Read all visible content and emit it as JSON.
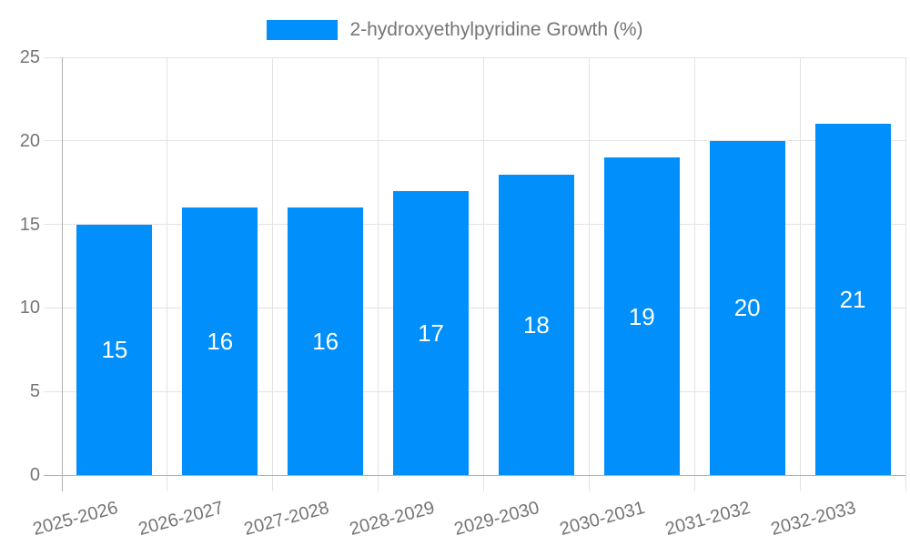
{
  "chart_data": {
    "type": "bar",
    "title": "",
    "legend_label": "2-hydroxyethylpyridine Growth (%)",
    "legend_position": "top",
    "categories": [
      "2025-2026",
      "2026-2027",
      "2027-2028",
      "2028-2029",
      "2029-2030",
      "2030-2031",
      "2031-2032",
      "2032-2033"
    ],
    "series": [
      {
        "name": "2-hydroxyethylpyridine Growth (%)",
        "values": [
          15,
          16,
          16,
          17,
          18,
          19,
          20,
          21
        ]
      }
    ],
    "data_labels": [
      "15",
      "16",
      "16",
      "17",
      "18",
      "19",
      "20",
      "21"
    ],
    "xlabel": "",
    "ylabel": "",
    "ylim": [
      0,
      25
    ],
    "y_ticks": [
      0,
      5,
      10,
      15,
      20,
      25
    ],
    "grid": "on",
    "legend_positioning": "top-center",
    "colors": {
      "bar": "#008FFB",
      "axis_text": "#757575",
      "data_label_text": "#ffffff",
      "gridline": "#e3e3e3",
      "axis_line": "#afafaf"
    }
  }
}
